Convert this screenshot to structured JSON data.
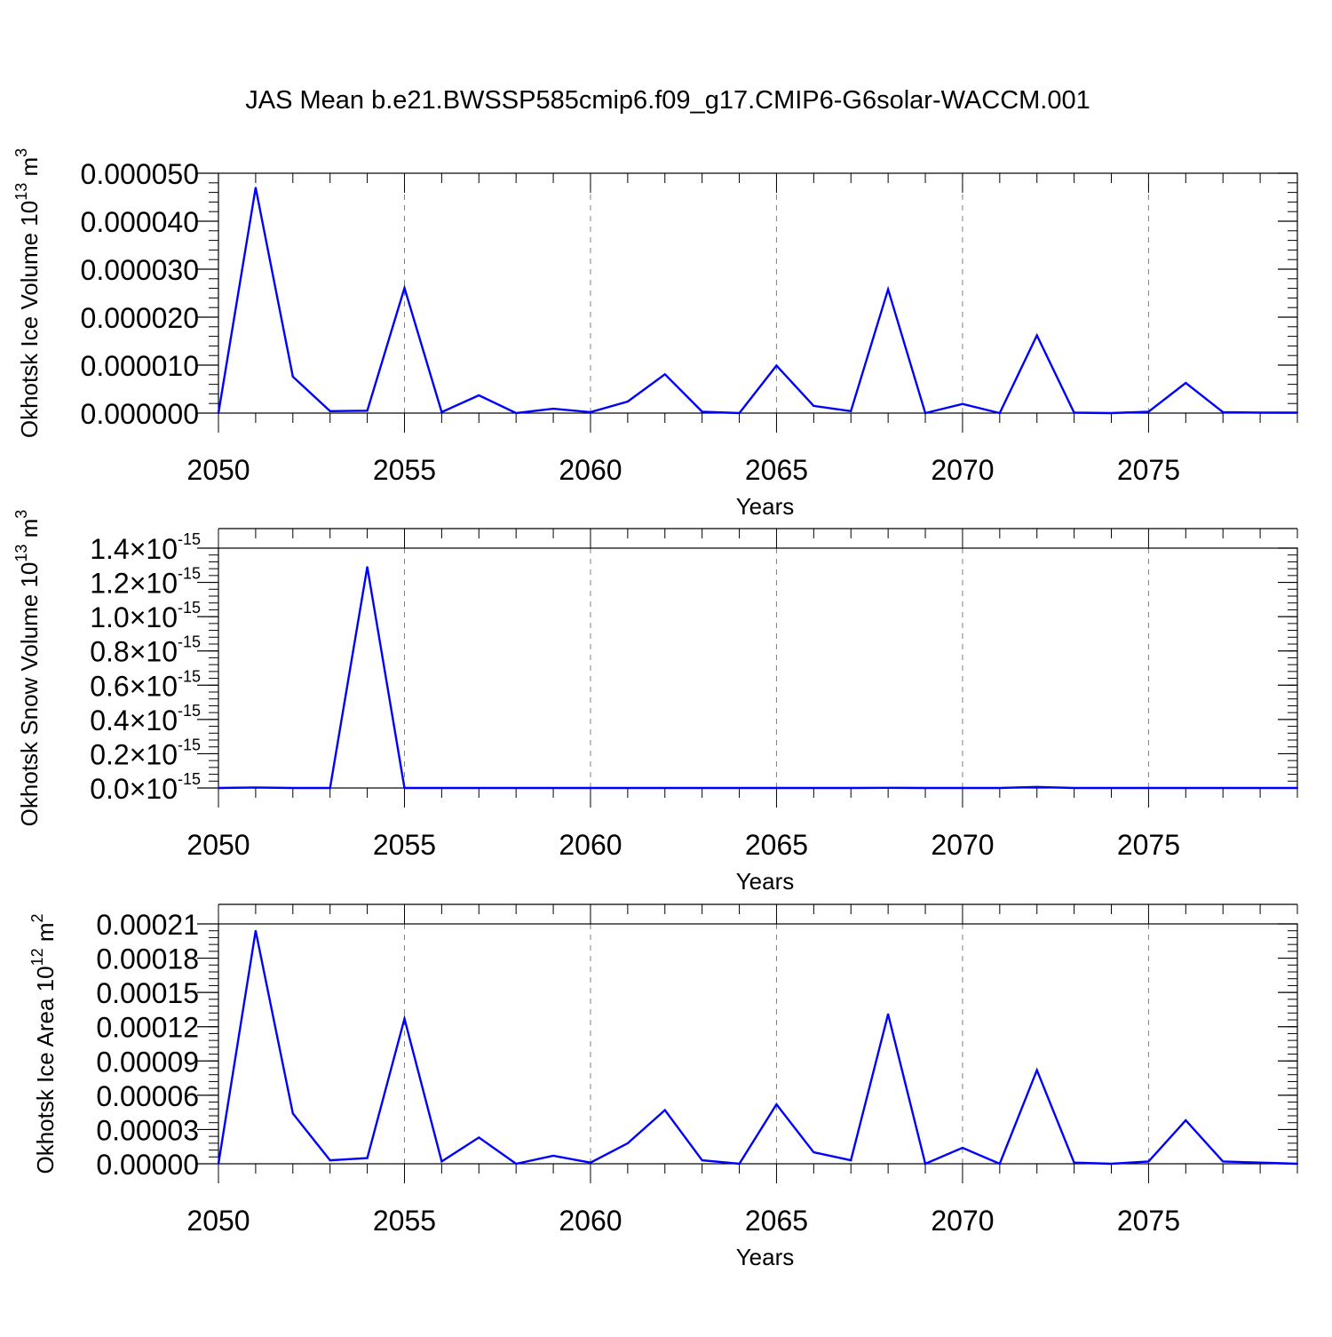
{
  "title": "JAS Mean b.e21.BWSSP585cmip6.f09_g17.CMIP6-G6solar-WACCM.001",
  "colors": {
    "line": "#0000ff",
    "axis": "#000000",
    "grid": "#808080",
    "background": "#ffffff"
  },
  "chart_data": [
    {
      "type": "line",
      "ylabel_main": "Okhotsk Ice Volume 10",
      "ylabel_exp": "13",
      "ylabel_unit": " m",
      "ylabel_unit_exp": "3",
      "xlabel": "Years",
      "xlim": [
        2050,
        2079
      ],
      "ylim": [
        0,
        5e-05
      ],
      "x_ticks": [
        "2050",
        "2055",
        "2060",
        "2065",
        "2070",
        "2075"
      ],
      "y_ticks": [
        {
          "value": 0.0,
          "label": "0.000000"
        },
        {
          "value": 1e-05,
          "label": "0.000010"
        },
        {
          "value": 2e-05,
          "label": "0.000020"
        },
        {
          "value": 3e-05,
          "label": "0.000030"
        },
        {
          "value": 4e-05,
          "label": "0.000040"
        },
        {
          "value": 5e-05,
          "label": "0.000050"
        }
      ],
      "y_minor_step": 2e-06,
      "series": [
        {
          "name": "Okhotsk Ice Volume",
          "x": [
            2050,
            2051,
            2052,
            2053,
            2054,
            2055,
            2056,
            2057,
            2058,
            2059,
            2060,
            2061,
            2062,
            2063,
            2064,
            2065,
            2066,
            2067,
            2068,
            2069,
            2070,
            2071,
            2072,
            2073,
            2074,
            2075,
            2076,
            2077,
            2078,
            2079
          ],
          "values": [
            0.0,
            4.7e-05,
            7.6e-06,
            4e-07,
            5e-07,
            2.61e-05,
            2e-07,
            3.7e-06,
            0.0,
            9e-07,
            2e-07,
            2.4e-06,
            8.1e-06,
            3e-07,
            0.0,
            9.9e-06,
            1.5e-06,
            4e-07,
            2.58e-05,
            0.0,
            1.9e-06,
            0.0,
            1.62e-05,
            1e-07,
            0.0,
            3e-07,
            6.3e-06,
            2e-07,
            1e-07,
            1e-07
          ]
        }
      ]
    },
    {
      "type": "line",
      "ylabel_main": "Okhotsk Snow Volume 10",
      "ylabel_exp": "13",
      "ylabel_unit": " m",
      "ylabel_unit_exp": "3",
      "xlabel": "Years",
      "xlim": [
        2050,
        2079
      ],
      "ylim": [
        0,
        1.4e-15
      ],
      "x_ticks": [
        "2050",
        "2055",
        "2060",
        "2065",
        "2070",
        "2075"
      ],
      "y_ticks": [
        {
          "value": 0.0,
          "label": "0.0",
          "times": "×",
          "base": "10",
          "exp": "-15"
        },
        {
          "value": 2e-16,
          "label": "0.2",
          "times": "×",
          "base": "10",
          "exp": "-15"
        },
        {
          "value": 4e-16,
          "label": "0.4",
          "times": "×",
          "base": "10",
          "exp": "-15"
        },
        {
          "value": 6e-16,
          "label": "0.6",
          "times": "×",
          "base": "10",
          "exp": "-15"
        },
        {
          "value": 8e-16,
          "label": "0.8",
          "times": "×",
          "base": "10",
          "exp": "-15"
        },
        {
          "value": 1e-15,
          "label": "1.0",
          "times": "×",
          "base": "10",
          "exp": "-15"
        },
        {
          "value": 1.2e-15,
          "label": "1.2",
          "times": "×",
          "base": "10",
          "exp": "-15"
        },
        {
          "value": 1.4e-15,
          "label": "1.4",
          "times": "×",
          "base": "10",
          "exp": "-15"
        }
      ],
      "y_minor_step": 4e-17,
      "series": [
        {
          "name": "Okhotsk Snow Volume",
          "x": [
            2050,
            2051,
            2052,
            2053,
            2054,
            2055,
            2056,
            2057,
            2058,
            2059,
            2060,
            2061,
            2062,
            2063,
            2064,
            2065,
            2066,
            2067,
            2068,
            2069,
            2070,
            2071,
            2072,
            2073,
            2074,
            2075,
            2076,
            2077,
            2078,
            2079
          ],
          "values": [
            0.0,
            3e-18,
            0.0,
            0.0,
            1.29e-15,
            0.0,
            0.0,
            0.0,
            0.0,
            0.0,
            0.0,
            0.0,
            0.0,
            0.0,
            0.0,
            0.0,
            0.0,
            0.0,
            1e-18,
            0.0,
            0.0,
            0.0,
            6e-18,
            0.0,
            0.0,
            0.0,
            0.0,
            0.0,
            0.0,
            0.0
          ]
        }
      ]
    },
    {
      "type": "line",
      "ylabel_main": "Okhotsk Ice Area 10",
      "ylabel_exp": "12",
      "ylabel_unit": " m",
      "ylabel_unit_exp": "2",
      "xlabel": "Years",
      "xlim": [
        2050,
        2079
      ],
      "ylim": [
        0,
        0.00021
      ],
      "x_ticks": [
        "2050",
        "2055",
        "2060",
        "2065",
        "2070",
        "2075"
      ],
      "y_ticks": [
        {
          "value": 0.0,
          "label": "0.00000"
        },
        {
          "value": 3e-05,
          "label": "0.00003"
        },
        {
          "value": 6e-05,
          "label": "0.00006"
        },
        {
          "value": 9e-05,
          "label": "0.00009"
        },
        {
          "value": 0.00012,
          "label": "0.00012"
        },
        {
          "value": 0.00015,
          "label": "0.00015"
        },
        {
          "value": 0.00018,
          "label": "0.00018"
        },
        {
          "value": 0.00021,
          "label": "0.00021"
        }
      ],
      "y_minor_step": 6e-06,
      "series": [
        {
          "name": "Okhotsk Ice Area",
          "x": [
            2050,
            2051,
            2052,
            2053,
            2054,
            2055,
            2056,
            2057,
            2058,
            2059,
            2060,
            2061,
            2062,
            2063,
            2064,
            2065,
            2066,
            2067,
            2068,
            2069,
            2070,
            2071,
            2072,
            2073,
            2074,
            2075,
            2076,
            2077,
            2078,
            2079
          ],
          "values": [
            0.0,
            0.000204,
            4.4e-05,
            3e-06,
            5e-06,
            0.000127,
            2e-06,
            2.3e-05,
            0.0,
            7e-06,
            1e-06,
            1.8e-05,
            4.7e-05,
            3e-06,
            0.0,
            5.2e-05,
            1e-05,
            3e-06,
            0.000131,
            0.0,
            1.4e-05,
            0.0,
            8.2e-05,
            1e-06,
            0.0,
            2e-06,
            3.8e-05,
            2e-06,
            1e-06,
            0.0
          ]
        }
      ]
    }
  ]
}
